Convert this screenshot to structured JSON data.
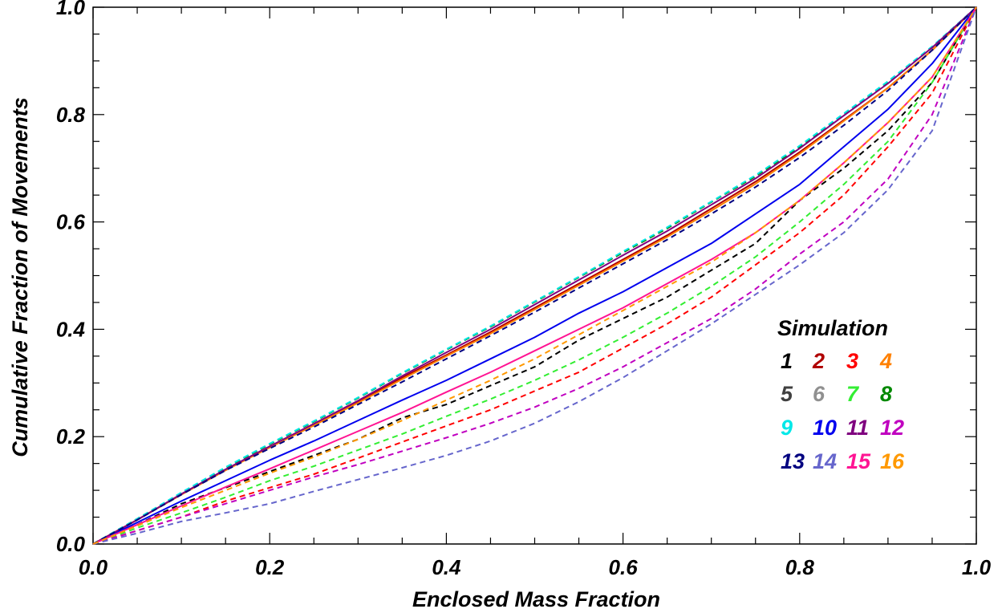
{
  "chart_data": {
    "type": "line",
    "xlabel": "Enclosed Mass Fraction",
    "ylabel": "Cumulative Fraction of Movements",
    "xlim": [
      0.0,
      1.0
    ],
    "ylim": [
      0.0,
      1.0
    ],
    "x_ticks": [
      "0.0",
      "0.2",
      "0.4",
      "0.6",
      "0.8",
      "1.0"
    ],
    "y_ticks": [
      "0.0",
      "0.2",
      "0.4",
      "0.6",
      "0.8",
      "1.0"
    ],
    "grid": false,
    "legend": {
      "title": "Simulation",
      "placement": "right",
      "columns": 4
    },
    "x": [
      0.0,
      0.05,
      0.1,
      0.15,
      0.2,
      0.25,
      0.3,
      0.35,
      0.4,
      0.45,
      0.5,
      0.55,
      0.6,
      0.65,
      0.7,
      0.75,
      0.8,
      0.85,
      0.9,
      0.95,
      1.0
    ],
    "series": [
      {
        "name": "1",
        "color": "#000000",
        "dash": true,
        "values": [
          0.0,
          0.036,
          0.075,
          0.105,
          0.135,
          0.165,
          0.195,
          0.235,
          0.26,
          0.295,
          0.33,
          0.38,
          0.42,
          0.46,
          0.51,
          0.56,
          0.64,
          0.7,
          0.77,
          0.86,
          1.0
        ]
      },
      {
        "name": "2",
        "color": "#b00000",
        "dash": false,
        "values": [
          0.0,
          0.045,
          0.093,
          0.138,
          0.18,
          0.222,
          0.265,
          0.31,
          0.352,
          0.395,
          0.44,
          0.485,
          0.53,
          0.575,
          0.625,
          0.675,
          0.73,
          0.79,
          0.85,
          0.92,
          1.0
        ]
      },
      {
        "name": "3",
        "color": "#ff0000",
        "dash": true,
        "values": [
          0.0,
          0.025,
          0.05,
          0.08,
          0.105,
          0.13,
          0.16,
          0.19,
          0.22,
          0.25,
          0.285,
          0.32,
          0.365,
          0.41,
          0.46,
          0.52,
          0.58,
          0.65,
          0.74,
          0.84,
          1.0
        ]
      },
      {
        "name": "4",
        "color": "#ff8000",
        "dash": false,
        "values": [
          0.0,
          0.045,
          0.092,
          0.137,
          0.18,
          0.221,
          0.263,
          0.307,
          0.35,
          0.392,
          0.437,
          0.482,
          0.527,
          0.572,
          0.621,
          0.671,
          0.727,
          0.788,
          0.85,
          0.92,
          1.0
        ]
      },
      {
        "name": "5",
        "color": "#404040",
        "dash": true,
        "values": [
          0.0,
          0.047,
          0.095,
          0.142,
          0.186,
          0.228,
          0.272,
          0.318,
          0.362,
          0.405,
          0.451,
          0.497,
          0.543,
          0.588,
          0.637,
          0.685,
          0.74,
          0.8,
          0.86,
          0.925,
          1.0
        ]
      },
      {
        "name": "6",
        "color": "#909090",
        "dash": true,
        "values": [
          0.0,
          0.047,
          0.095,
          0.142,
          0.186,
          0.228,
          0.272,
          0.318,
          0.362,
          0.405,
          0.451,
          0.497,
          0.543,
          0.588,
          0.637,
          0.685,
          0.74,
          0.8,
          0.86,
          0.925,
          1.0
        ]
      },
      {
        "name": "7",
        "color": "#33ee33",
        "dash": true,
        "values": [
          0.0,
          0.03,
          0.058,
          0.087,
          0.118,
          0.145,
          0.175,
          0.205,
          0.238,
          0.27,
          0.305,
          0.343,
          0.385,
          0.43,
          0.48,
          0.535,
          0.6,
          0.67,
          0.75,
          0.86,
          1.0
        ]
      },
      {
        "name": "8",
        "color": "#008800",
        "dash": true,
        "values": [
          0.0,
          0.047,
          0.095,
          0.142,
          0.186,
          0.228,
          0.272,
          0.318,
          0.362,
          0.405,
          0.451,
          0.497,
          0.543,
          0.588,
          0.637,
          0.685,
          0.74,
          0.8,
          0.86,
          0.925,
          1.0
        ]
      },
      {
        "name": "9",
        "color": "#00e8e8",
        "dash": true,
        "values": [
          0.0,
          0.047,
          0.096,
          0.143,
          0.187,
          0.229,
          0.273,
          0.319,
          0.363,
          0.406,
          0.452,
          0.498,
          0.545,
          0.59,
          0.638,
          0.687,
          0.742,
          0.802,
          0.862,
          0.927,
          1.0
        ]
      },
      {
        "name": "10",
        "color": "#0000ee",
        "dash": false,
        "values": [
          0.0,
          0.04,
          0.08,
          0.118,
          0.156,
          0.192,
          0.23,
          0.268,
          0.305,
          0.345,
          0.385,
          0.43,
          0.47,
          0.515,
          0.56,
          0.615,
          0.67,
          0.74,
          0.81,
          0.895,
          1.0
        ]
      },
      {
        "name": "11",
        "color": "#7f007f",
        "dash": false,
        "values": [
          0.0,
          0.045,
          0.093,
          0.139,
          0.182,
          0.224,
          0.267,
          0.313,
          0.357,
          0.4,
          0.446,
          0.492,
          0.538,
          0.583,
          0.632,
          0.681,
          0.737,
          0.798,
          0.858,
          0.925,
          1.0
        ]
      },
      {
        "name": "12",
        "color": "#c000c0",
        "dash": true,
        "values": [
          0.0,
          0.025,
          0.05,
          0.075,
          0.1,
          0.125,
          0.148,
          0.173,
          0.198,
          0.225,
          0.255,
          0.29,
          0.33,
          0.375,
          0.42,
          0.475,
          0.54,
          0.6,
          0.68,
          0.8,
          1.0
        ]
      },
      {
        "name": "13",
        "color": "#000080",
        "dash": true,
        "values": [
          0.0,
          0.045,
          0.092,
          0.137,
          0.178,
          0.218,
          0.26,
          0.302,
          0.345,
          0.388,
          0.432,
          0.477,
          0.522,
          0.567,
          0.615,
          0.665,
          0.72,
          0.78,
          0.845,
          0.92,
          1.0
        ]
      },
      {
        "name": "14",
        "color": "#6666cc",
        "dash": true,
        "values": [
          0.0,
          0.02,
          0.042,
          0.058,
          0.075,
          0.098,
          0.12,
          0.142,
          0.165,
          0.192,
          0.225,
          0.265,
          0.31,
          0.36,
          0.41,
          0.465,
          0.52,
          0.58,
          0.66,
          0.77,
          1.0
        ]
      },
      {
        "name": "15",
        "color": "#ff1493",
        "dash": false,
        "values": [
          0.0,
          0.036,
          0.071,
          0.106,
          0.14,
          0.175,
          0.21,
          0.245,
          0.283,
          0.32,
          0.36,
          0.4,
          0.44,
          0.485,
          0.53,
          0.58,
          0.64,
          0.71,
          0.785,
          0.87,
          1.0
        ]
      },
      {
        "name": "16",
        "color": "#ff9900",
        "dash": true,
        "values": [
          0.0,
          0.034,
          0.068,
          0.1,
          0.132,
          0.162,
          0.195,
          0.23,
          0.268,
          0.305,
          0.345,
          0.39,
          0.435,
          0.48,
          0.525,
          0.58,
          0.64,
          0.71,
          0.785,
          0.87,
          1.0
        ]
      }
    ]
  }
}
